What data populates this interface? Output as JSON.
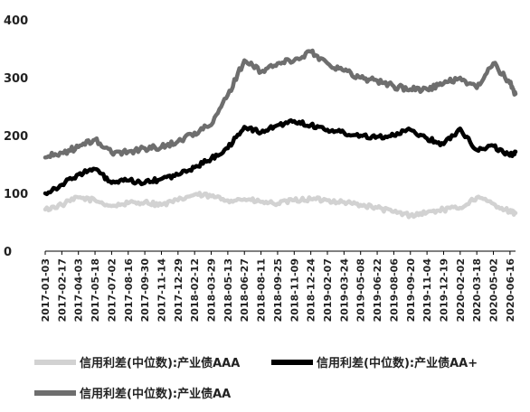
{
  "chart_data": {
    "type": "line",
    "title": "",
    "xlabel": "",
    "ylabel": "",
    "ylim": [
      0,
      400
    ],
    "yticks": [
      0,
      100,
      200,
      300,
      400
    ],
    "grid": false,
    "legend_position": "bottom",
    "x_tick_labels": [
      "2017-01-03",
      "2017-02-17",
      "2017-04-03",
      "2017-05-18",
      "2017-07-02",
      "2017-08-16",
      "2017-09-30",
      "2017-11-14",
      "2017-12-29",
      "2018-02-12",
      "2018-03-29",
      "2018-05-13",
      "2018-06-27",
      "2018-08-11",
      "2018-09-25",
      "2018-11-09",
      "2018-12-24",
      "2019-02-07",
      "2019-03-24",
      "2019-05-08",
      "2019-06-22",
      "2019-08-06",
      "2019-09-20",
      "2019-11-04",
      "2019-12-19",
      "2020-02-02",
      "2020-03-18",
      "2020-05-02",
      "2020-06-16"
    ],
    "x": [
      "2017-01-03",
      "2017-02-17",
      "2017-04-03",
      "2017-05-18",
      "2017-07-02",
      "2017-08-16",
      "2017-09-30",
      "2017-11-14",
      "2017-12-29",
      "2018-02-12",
      "2018-03-29",
      "2018-05-13",
      "2018-06-27",
      "2018-08-11",
      "2018-09-25",
      "2018-11-09",
      "2018-12-24",
      "2019-02-07",
      "2019-03-24",
      "2019-05-08",
      "2019-06-22",
      "2019-08-06",
      "2019-09-20",
      "2019-11-04",
      "2019-12-19",
      "2020-02-02",
      "2020-03-18",
      "2020-05-02",
      "2020-06-16",
      "2020-07-01"
    ],
    "series": [
      {
        "name": "信用利差(中位数):产业债AAA",
        "color": "#d2d2d2",
        "values": [
          72,
          80,
          93,
          88,
          78,
          83,
          85,
          80,
          88,
          98,
          95,
          88,
          90,
          85,
          82,
          88,
          90,
          88,
          85,
          80,
          75,
          68,
          62,
          67,
          72,
          75,
          93,
          82,
          68,
          66
        ]
      },
      {
        "name": "信用利差(中位数):产业债AA+",
        "color": "#000000",
        "values": [
          100,
          115,
          133,
          142,
          118,
          122,
          118,
          125,
          132,
          145,
          160,
          178,
          215,
          205,
          218,
          225,
          218,
          210,
          205,
          200,
          198,
          200,
          210,
          195,
          185,
          212,
          175,
          182,
          165,
          172
        ]
      },
      {
        "name": "信用利差(中位数):产业债AA",
        "color": "#6e6e6e",
        "values": [
          162,
          170,
          180,
          193,
          170,
          172,
          178,
          180,
          190,
          205,
          218,
          270,
          330,
          310,
          325,
          330,
          345,
          325,
          312,
          300,
          295,
          285,
          280,
          280,
          290,
          300,
          282,
          325,
          290,
          272
        ]
      }
    ]
  }
}
